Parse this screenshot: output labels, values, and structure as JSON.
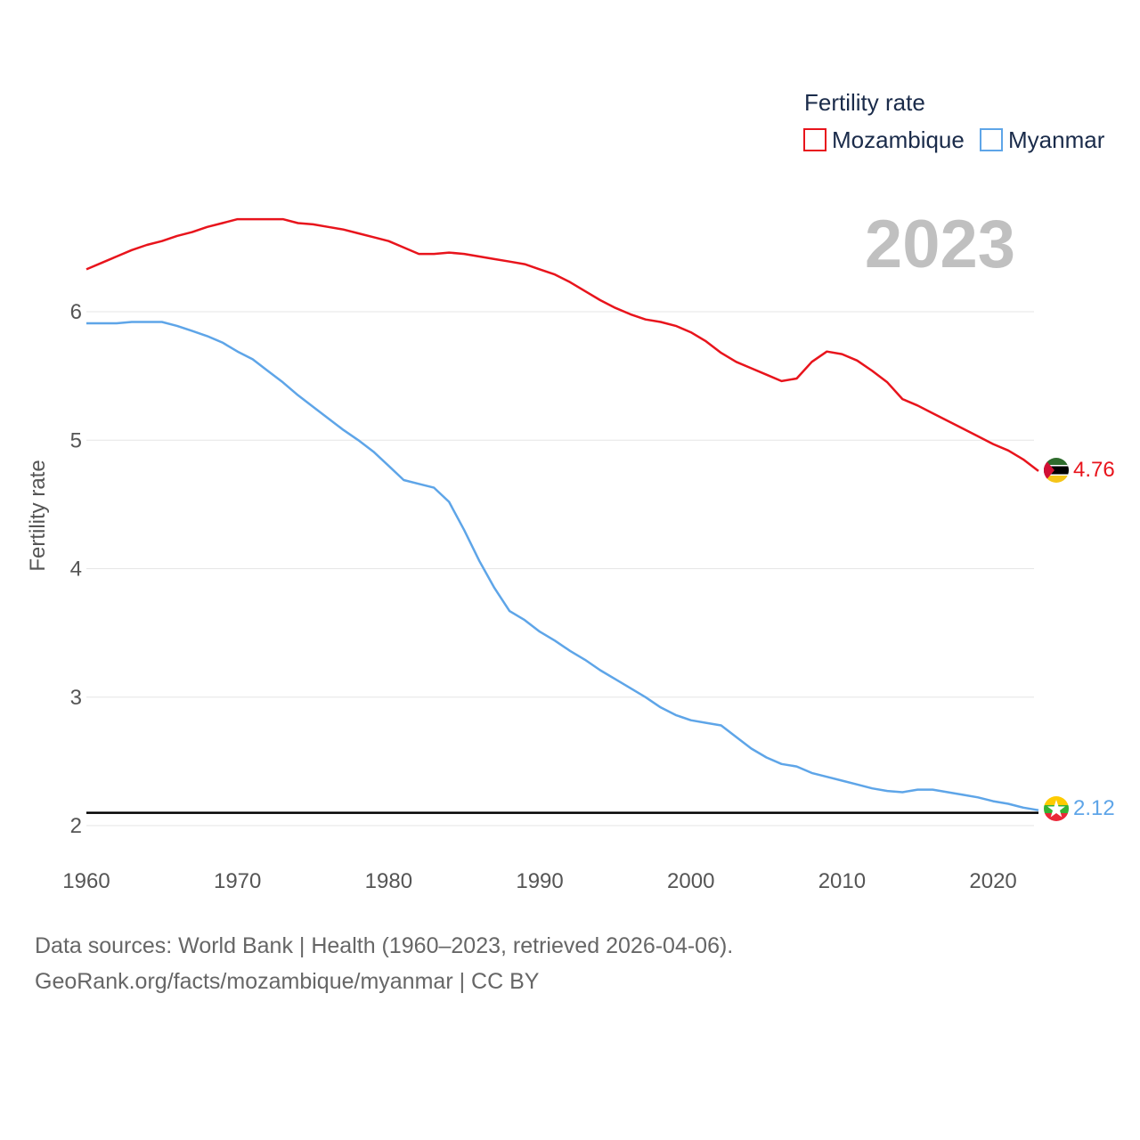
{
  "colors": {
    "mozambique": "#e8141c",
    "myanmar": "#5ea5e8",
    "grid": "#e6e6e6",
    "reference_line": "#000000"
  },
  "chart_data": {
    "type": "line",
    "title": "Fertility rate",
    "ylabel": "Fertility rate",
    "xlabel": "",
    "year_label": "2023",
    "xlim": [
      1960,
      2023
    ],
    "ylim": [
      1.75,
      6.75
    ],
    "x_ticks": [
      1960,
      1970,
      1980,
      1990,
      2000,
      2010,
      2020
    ],
    "y_ticks": [
      2,
      3,
      4,
      5,
      6
    ],
    "reference_line": 2.1,
    "legend_position": "top-right",
    "x": [
      1960,
      1961,
      1962,
      1963,
      1964,
      1965,
      1966,
      1967,
      1968,
      1969,
      1970,
      1971,
      1972,
      1973,
      1974,
      1975,
      1976,
      1977,
      1978,
      1979,
      1980,
      1981,
      1982,
      1983,
      1984,
      1985,
      1986,
      1987,
      1988,
      1989,
      1990,
      1991,
      1992,
      1993,
      1994,
      1995,
      1996,
      1997,
      1998,
      1999,
      2000,
      2001,
      2002,
      2003,
      2004,
      2005,
      2006,
      2007,
      2008,
      2009,
      2010,
      2011,
      2012,
      2013,
      2014,
      2015,
      2016,
      2017,
      2018,
      2019,
      2020,
      2021,
      2022,
      2023
    ],
    "series": [
      {
        "name": "Mozambique",
        "color_key": "mozambique",
        "end_label": "4.76",
        "values": [
          6.33,
          6.38,
          6.43,
          6.48,
          6.52,
          6.55,
          6.59,
          6.62,
          6.66,
          6.69,
          6.72,
          6.72,
          6.72,
          6.72,
          6.69,
          6.68,
          6.66,
          6.64,
          6.61,
          6.58,
          6.55,
          6.5,
          6.45,
          6.45,
          6.46,
          6.45,
          6.43,
          6.41,
          6.39,
          6.37,
          6.33,
          6.29,
          6.23,
          6.16,
          6.09,
          6.03,
          5.98,
          5.94,
          5.92,
          5.89,
          5.84,
          5.77,
          5.68,
          5.61,
          5.56,
          5.51,
          5.46,
          5.48,
          5.61,
          5.69,
          5.67,
          5.62,
          5.54,
          5.45,
          5.32,
          5.27,
          5.21,
          5.15,
          5.09,
          5.03,
          4.97,
          4.92,
          4.85,
          4.76
        ]
      },
      {
        "name": "Myanmar",
        "color_key": "myanmar",
        "end_label": "2.12",
        "values": [
          5.91,
          5.91,
          5.91,
          5.92,
          5.92,
          5.92,
          5.89,
          5.85,
          5.81,
          5.76,
          5.69,
          5.63,
          5.54,
          5.45,
          5.35,
          5.26,
          5.17,
          5.08,
          5.0,
          4.91,
          4.8,
          4.69,
          4.66,
          4.63,
          4.52,
          4.3,
          4.06,
          3.85,
          3.67,
          3.6,
          3.51,
          3.44,
          3.36,
          3.29,
          3.21,
          3.14,
          3.07,
          3.0,
          2.92,
          2.86,
          2.82,
          2.8,
          2.78,
          2.69,
          2.6,
          2.53,
          2.48,
          2.46,
          2.41,
          2.38,
          2.35,
          2.32,
          2.29,
          2.27,
          2.26,
          2.28,
          2.28,
          2.26,
          2.24,
          2.22,
          2.19,
          2.17,
          2.14,
          2.12
        ]
      }
    ]
  },
  "footer": {
    "line1": "Data sources: World Bank | Health (1960–2023, retrieved 2026-04-06).",
    "line2": "GeoRank.org/facts/mozambique/myanmar | CC BY"
  }
}
